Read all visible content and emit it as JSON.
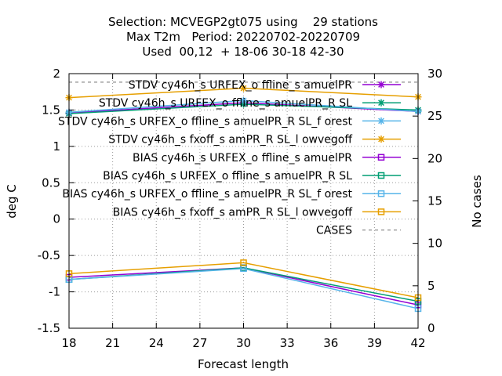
{
  "chart_data": {
    "type": "line",
    "title_lines": [
      "Selection: MCVEGP2gt075 using    29 stations",
      "Max T2m   Period: 20220702-20220709",
      "Used  00,12  + 18-06 30-18 42-30"
    ],
    "xlabel": "Forecast length",
    "ylabel": "deg C",
    "y2label": "No cases",
    "x": [
      18,
      30,
      42
    ],
    "xlim": [
      18,
      42
    ],
    "ylim": [
      -1.5,
      2
    ],
    "y2lim": [
      0,
      30
    ],
    "xticks": [
      "18",
      "21",
      "24",
      "27",
      "30",
      "33",
      "36",
      "39",
      "42"
    ],
    "yticks": [
      "-1.5",
      "-1",
      "-0.5",
      "0",
      "0.5",
      "1",
      "1.5",
      "2"
    ],
    "y2ticks": [
      "0",
      "5",
      "10",
      "15",
      "20",
      "25",
      "30"
    ],
    "grid": true,
    "legend_position": "top-right",
    "series": [
      {
        "name": "STDV cy46h_s URFEX_o ffline_s amuelPR",
        "color": "#9400d3",
        "marker": "star",
        "values": [
          1.46,
          1.6,
          1.48
        ]
      },
      {
        "name": "STDV cy46h_s URFEX_o ffline_s amuelPR_R SL",
        "color": "#009e73",
        "marker": "star",
        "values": [
          1.45,
          1.58,
          1.5
        ]
      },
      {
        "name": "STDV cy46h_s URFEX_o ffline_s amuelPR_R SL_f orest",
        "color": "#56b4e9",
        "marker": "star",
        "values": [
          1.47,
          1.63,
          1.48
        ]
      },
      {
        "name": "STDV cy46h_s fxoff_s amPR_R SL_l owvegoff",
        "color": "#e69f00",
        "marker": "star",
        "values": [
          1.67,
          1.8,
          1.68
        ]
      },
      {
        "name": "BIAS cy46h_s URFEX_o ffline_s amuelPR",
        "color": "#9400d3",
        "marker": "square",
        "values": [
          -0.8,
          -0.67,
          -1.18
        ]
      },
      {
        "name": "BIAS cy46h_s URFEX_o ffline_s amuelPR_R SL",
        "color": "#009e73",
        "marker": "square",
        "values": [
          -0.83,
          -0.67,
          -1.13
        ]
      },
      {
        "name": "BIAS cy46h_s URFEX_o ffline_s amuelPR_R SL_f orest",
        "color": "#56b4e9",
        "marker": "square",
        "values": [
          -0.83,
          -0.68,
          -1.23
        ]
      },
      {
        "name": "BIAS cy46h_s fxoff_s amPR_R SL_l owvegoff",
        "color": "#e69f00",
        "marker": "square",
        "values": [
          -0.75,
          -0.6,
          -1.08
        ]
      },
      {
        "name": "CASES",
        "color": "#a0a0a0",
        "marker": "none",
        "axis": "y2",
        "dashed": true,
        "values": [
          29,
          29,
          29
        ]
      }
    ]
  }
}
